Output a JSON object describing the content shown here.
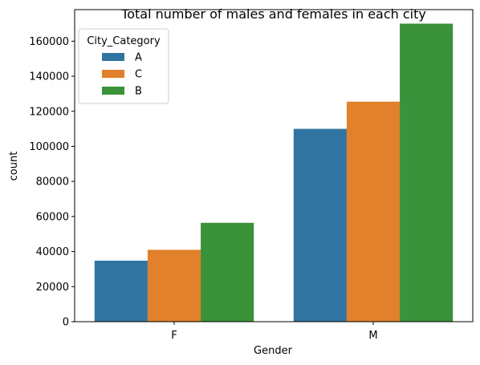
{
  "chart_data": {
    "type": "bar",
    "title": "Total number of males and females in each city",
    "xlabel": "Gender",
    "ylabel": "count",
    "categories": [
      "F",
      "M"
    ],
    "series": [
      {
        "name": "A",
        "color": "#3274a1",
        "values": [
          34800,
          110000
        ]
      },
      {
        "name": "C",
        "color": "#e1812c",
        "values": [
          41000,
          125500
        ]
      },
      {
        "name": "B",
        "color": "#3a923a",
        "values": [
          56400,
          170000
        ]
      }
    ],
    "ylim": [
      0,
      178000
    ],
    "yticks": [
      0,
      20000,
      40000,
      60000,
      80000,
      100000,
      120000,
      140000,
      160000
    ],
    "legend": {
      "title": "City_Category",
      "placement": "top-left"
    },
    "grid": false
  }
}
